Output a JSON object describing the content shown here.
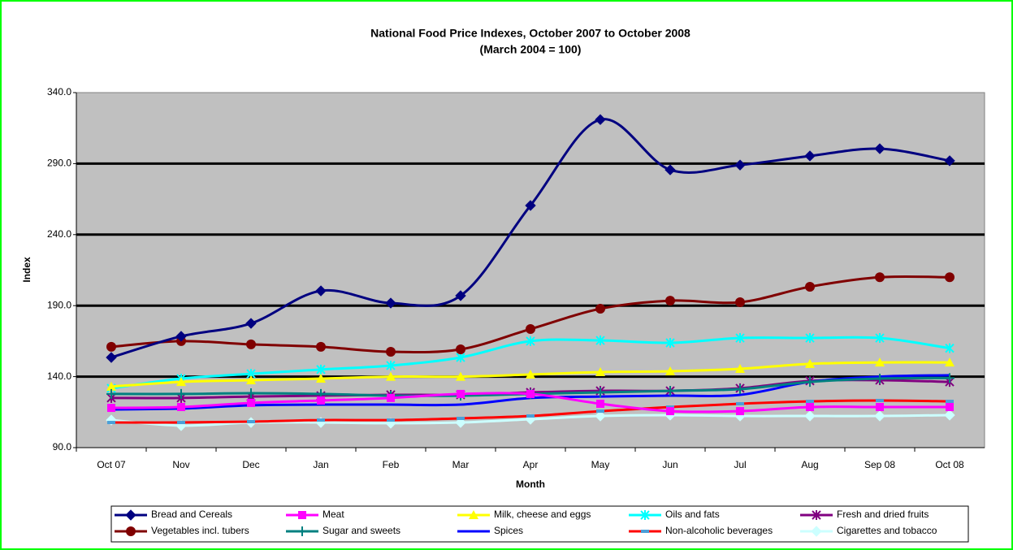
{
  "chart_data": {
    "type": "line",
    "title": "National Food Price Indexes, October 2007 to October 2008",
    "subtitle": "(March 2004 = 100)",
    "x_label": "Month",
    "y_label": "Index",
    "categories": [
      "Oct 07",
      "Nov",
      "Dec",
      "Jan",
      "Feb",
      "Mar",
      "Apr",
      "May",
      "Jun",
      "Jul",
      "Aug",
      "Sep 08",
      "Oct 08"
    ],
    "ylim": [
      90,
      340
    ],
    "yticks": [
      {
        "value": 90,
        "label": "90.0"
      },
      {
        "value": 140,
        "label": "140.0"
      },
      {
        "value": 190,
        "label": "190.0"
      },
      {
        "value": 240,
        "label": "240.0"
      },
      {
        "value": 290,
        "label": "290.0"
      },
      {
        "value": 340,
        "label": "340.0"
      }
    ],
    "grid": true,
    "smooth": true,
    "series": [
      {
        "name": "Bread and Cereals",
        "color": "#000080",
        "marker": "diamond",
        "values": [
          153.5,
          168.4,
          177.5,
          200.4,
          191.8,
          197,
          260.5,
          321,
          285.6,
          289,
          295.4,
          300.5,
          292
        ]
      },
      {
        "name": "Vegetables incl.  tubers",
        "color": "#800000",
        "marker": "circle",
        "values": [
          161,
          165,
          162.7,
          161,
          157.5,
          159.2,
          173.5,
          187.8,
          193.5,
          192.4,
          203.3,
          210,
          210
        ]
      },
      {
        "name": "Meat",
        "color": "#ff00ff",
        "marker": "square",
        "values": [
          118,
          118.6,
          121.5,
          123.2,
          125,
          127.8,
          127.8,
          120.9,
          115.7,
          115.7,
          118.6,
          118.6,
          118.6
        ]
      },
      {
        "name": "Sugar and sweets",
        "color": "#008080",
        "marker": "plus",
        "values": [
          127.8,
          127.8,
          128.3,
          127.8,
          126.6,
          126.6,
          127.8,
          128.9,
          130,
          131.2,
          136.3,
          138.6,
          139
        ]
      },
      {
        "name": "Milk, cheese and eggs",
        "color": "#ffff00",
        "marker": "triangle",
        "values": [
          133,
          136.3,
          137.5,
          138.6,
          140,
          140,
          141.5,
          143.2,
          143.8,
          145.5,
          149,
          150,
          150
        ]
      },
      {
        "name": "Spices",
        "color": "#0000ff",
        "marker": "none",
        "values": [
          116.9,
          117.5,
          119.8,
          120.3,
          120.3,
          120.3,
          125,
          126,
          126.6,
          127.2,
          136.3,
          140,
          141
        ]
      },
      {
        "name": "Oils and fats",
        "color": "#00ffff",
        "marker": "star",
        "values": [
          131.8,
          138.6,
          142,
          145,
          147.8,
          153.5,
          165,
          165.5,
          163.8,
          167.2,
          167.2,
          167.2,
          160
        ]
      },
      {
        "name": "Non-alcoholic beverages",
        "color": "#ff0000",
        "marker": "dash",
        "values": [
          107.7,
          107.7,
          108.3,
          109.4,
          109.4,
          110.6,
          112.3,
          115.7,
          118.6,
          120.9,
          122.6,
          123.2,
          122.6
        ]
      },
      {
        "name": "Fresh and dried fruits",
        "color": "#800080",
        "marker": "star",
        "values": [
          125,
          125,
          126,
          126.6,
          127.2,
          127.2,
          128.9,
          130,
          130,
          131.8,
          137,
          137.5,
          136.3
        ]
      },
      {
        "name": "Cigarettes and tobacco",
        "color": "#ccffff",
        "marker": "diamond",
        "values": [
          109.4,
          105.5,
          107.7,
          107.7,
          107.2,
          107.7,
          110,
          112.3,
          112.9,
          112.3,
          112.3,
          112.3,
          112.9
        ]
      }
    ]
  }
}
